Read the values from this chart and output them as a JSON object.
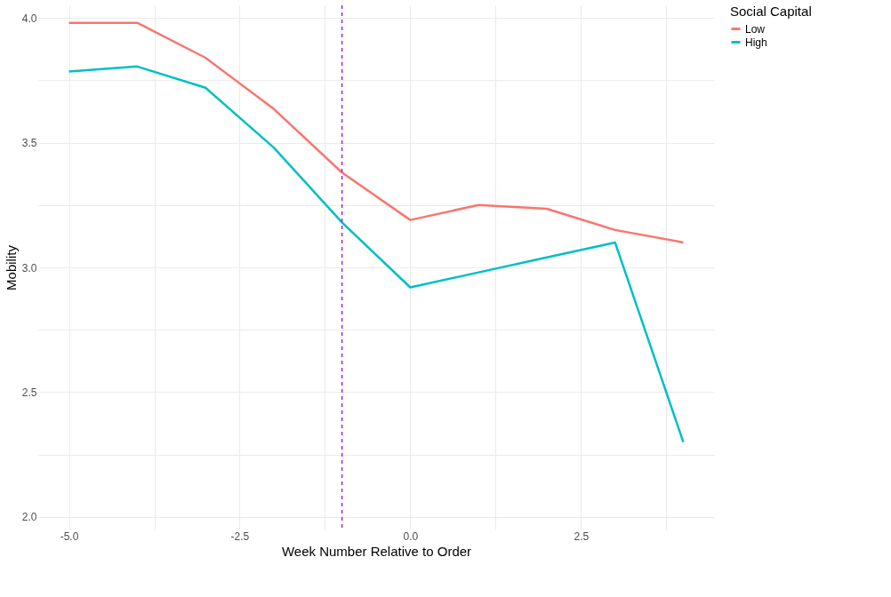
{
  "chart_data": {
    "type": "line",
    "xlabel": "Week Number Relative to Order",
    "ylabel": "Mobility",
    "legend_title": "Social Capital",
    "legend": "right",
    "grid": true,
    "x": [
      -5,
      -4,
      -3,
      -2,
      -1,
      0,
      1,
      2,
      3,
      4
    ],
    "series": [
      {
        "name": "Low",
        "color": "#f8766d",
        "values": [
          3.98,
          3.98,
          3.84,
          3.635,
          3.38,
          3.19,
          3.25,
          3.235,
          3.15,
          3.1
        ]
      },
      {
        "name": "High",
        "color": "#00bfc4",
        "values": [
          3.785,
          3.805,
          3.72,
          3.48,
          3.18,
          2.92,
          2.98,
          3.04,
          3.1,
          2.3
        ]
      }
    ],
    "xlim": [
      -5.45,
      4.45
    ],
    "ylim": [
      1.95,
      4.05
    ],
    "xticks": [
      {
        "value": -5,
        "label": "-5.0"
      },
      {
        "value": -3.75,
        "label": null
      },
      {
        "value": -2.5,
        "label": "-2.5"
      },
      {
        "value": -1.25,
        "label": null
      },
      {
        "value": 0,
        "label": "0.0"
      },
      {
        "value": 1.25,
        "label": null
      },
      {
        "value": 2.5,
        "label": "2.5"
      },
      {
        "value": 3.75,
        "label": null
      }
    ],
    "yticks": [
      {
        "value": 2,
        "label": "2.0"
      },
      {
        "value": 2.25,
        "label": null
      },
      {
        "value": 2.5,
        "label": "2.5"
      },
      {
        "value": 2.75,
        "label": null
      },
      {
        "value": 3,
        "label": "3.0"
      },
      {
        "value": 3.25,
        "label": null
      },
      {
        "value": 3.5,
        "label": "3.5"
      },
      {
        "value": 3.75,
        "label": null
      },
      {
        "value": 4,
        "label": "4.0"
      }
    ],
    "ref_lines": [
      {
        "axis": "x",
        "value": -1,
        "color": "#a020f0",
        "line_style": "dashed"
      }
    ]
  }
}
